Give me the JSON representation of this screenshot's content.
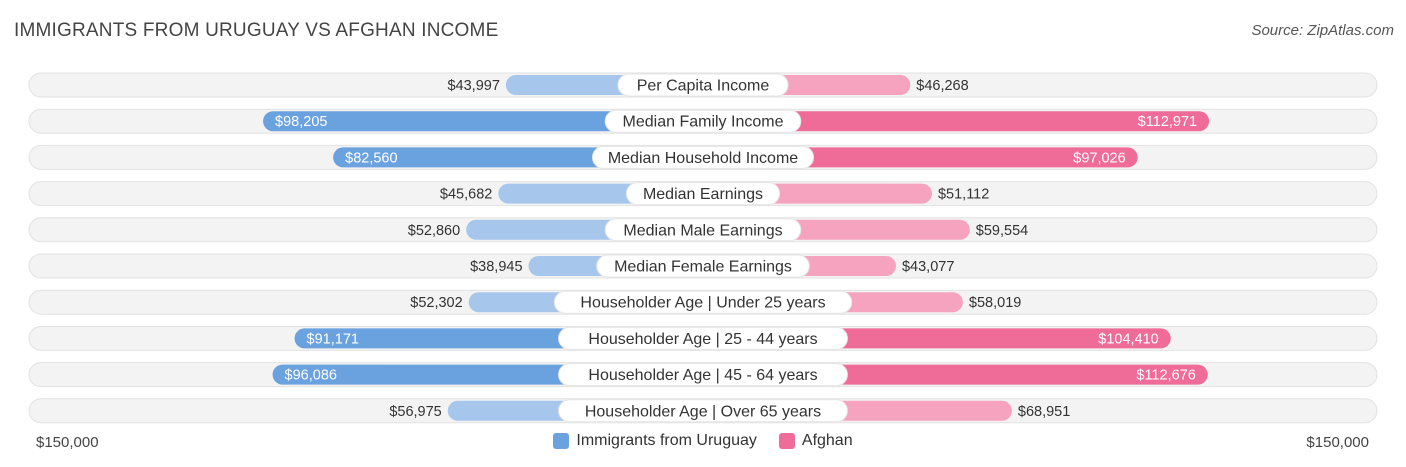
{
  "header": {
    "title": "IMMIGRANTS FROM URUGUAY VS AFGHAN INCOME",
    "source": "Source: ZipAtlas.com"
  },
  "colors": {
    "left_strong": "#6aa1df",
    "left_light": "#a6c6ec",
    "right_strong": "#f06c98",
    "right_light": "#f6a3bf",
    "track": "#ececec"
  },
  "chart_data": {
    "type": "bar",
    "orientation": "horizontal-diverging",
    "categories": [
      "Per Capita Income",
      "Median Family Income",
      "Median Household Income",
      "Median Earnings",
      "Median Male Earnings",
      "Median Female Earnings",
      "Householder Age | Under 25 years",
      "Householder Age | 25 - 44 years",
      "Householder Age | 45 - 64 years",
      "Householder Age | Over 65 years"
    ],
    "series": [
      {
        "name": "Immigrants from Uruguay",
        "values": [
          43997,
          98205,
          82560,
          45682,
          52860,
          38945,
          52302,
          91171,
          96086,
          56975
        ],
        "labels": [
          "$43,997",
          "$98,205",
          "$82,560",
          "$45,682",
          "$52,860",
          "$38,945",
          "$52,302",
          "$91,171",
          "$96,086",
          "$56,975"
        ]
      },
      {
        "name": "Afghan",
        "values": [
          46268,
          112971,
          97026,
          51112,
          59554,
          43077,
          58019,
          104410,
          112676,
          68951
        ],
        "labels": [
          "$46,268",
          "$112,971",
          "$97,026",
          "$51,112",
          "$59,554",
          "$43,077",
          "$58,019",
          "$104,410",
          "$112,676",
          "$68,951"
        ]
      }
    ],
    "xlim": [
      0,
      150000
    ],
    "axis_left_label": "$150,000",
    "axis_right_label": "$150,000",
    "legend": "bottom-center"
  }
}
